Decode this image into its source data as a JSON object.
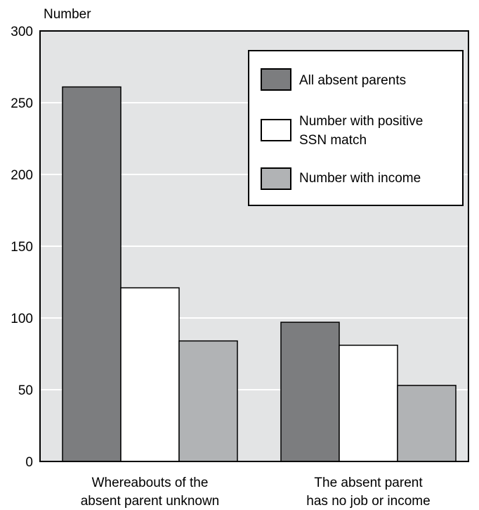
{
  "colors": {
    "plot_background": "#e3e4e5",
    "gridline": "#ffffff",
    "axis": "#000000"
  },
  "chart_data": {
    "type": "bar",
    "title": "",
    "xlabel": "",
    "ylabel": "Number",
    "ylim": [
      0,
      300
    ],
    "yticks": [
      0,
      50,
      100,
      150,
      200,
      250,
      300
    ],
    "grid": true,
    "legend_position": "top-right",
    "categories": [
      [
        "Whereabouts of the",
        "absent parent unknown"
      ],
      [
        "The absent parent",
        "has no job or income"
      ]
    ],
    "series": [
      {
        "name": [
          "All absent parents"
        ],
        "color": "#7c7d7f",
        "values": [
          261,
          97
        ]
      },
      {
        "name": [
          "Number with positive",
          "SSN match"
        ],
        "color": "#ffffff",
        "values": [
          121,
          81
        ]
      },
      {
        "name": [
          "Number with income"
        ],
        "color": "#b1b3b5",
        "values": [
          84,
          53
        ]
      }
    ]
  }
}
